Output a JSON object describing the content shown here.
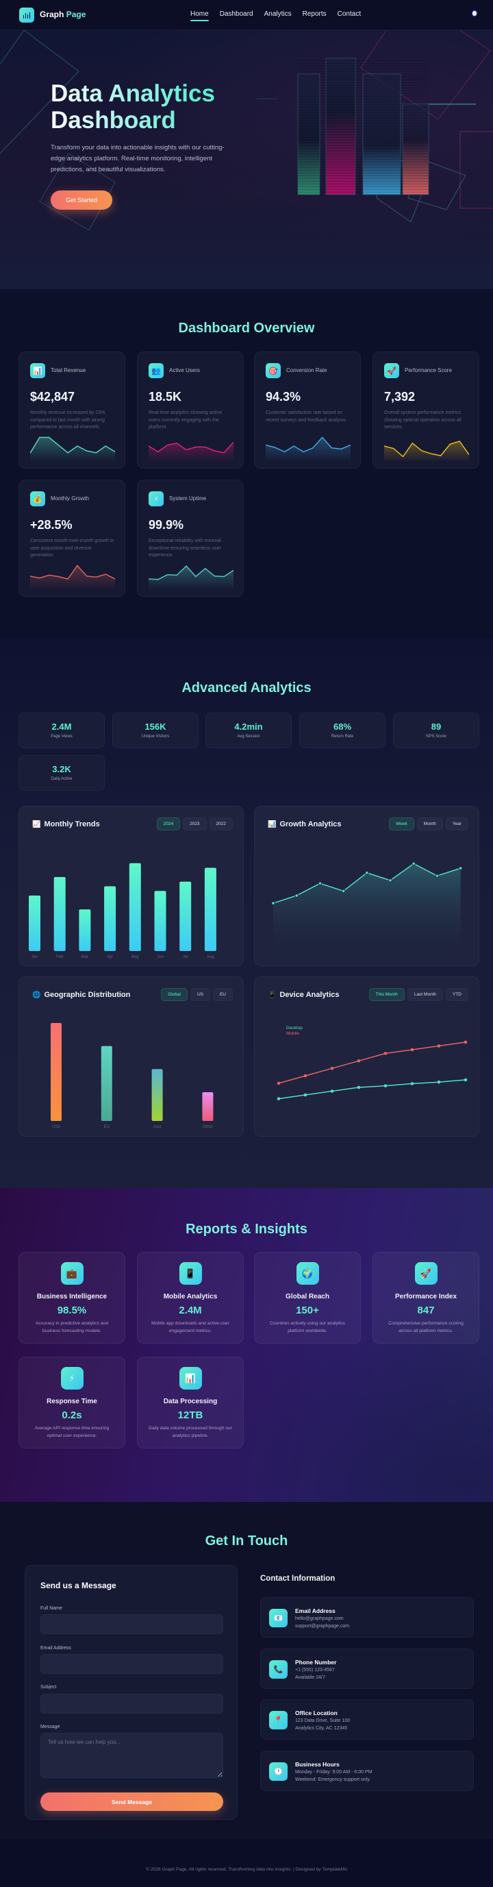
{
  "nav": {
    "brand_first": "Graph",
    "brand_second": "Page",
    "links": [
      {
        "label": "Home",
        "active": true
      },
      {
        "label": "Dashboard",
        "active": false
      },
      {
        "label": "Analytics",
        "active": false
      },
      {
        "label": "Reports",
        "active": false
      },
      {
        "label": "Contact",
        "active": false
      }
    ]
  },
  "hero": {
    "title_line1": "Data Analytics",
    "title_line2": "Dashboard",
    "description": "Transform your data into actionable insights with our cutting-edge analytics platform. Real-time monitoring, intelligent predictions, and beautiful visualizations.",
    "cta_label": "Get Started"
  },
  "overview": {
    "title": "Dashboard Overview",
    "cards": [
      {
        "icon": "bar-chart-icon",
        "glyph": "📊",
        "label": "Total Revenue",
        "value": "$42,847",
        "description": "Monthly revenue increased by 23% compared to last month with strong performance across all channels.",
        "color": "#4fd8bd",
        "spark": [
          45,
          12,
          12,
          28,
          44,
          30,
          40,
          44,
          30,
          42
        ]
      },
      {
        "icon": "users-icon",
        "glyph": "👥",
        "label": "Active Users",
        "value": "18.5K",
        "description": "Real-time analytics showing active users currently engaging with the platform.",
        "color": "#e0207c",
        "spark": [
          30,
          42,
          28,
          24,
          38,
          32,
          32,
          40,
          44,
          22
        ]
      },
      {
        "icon": "target-icon",
        "glyph": "🎯",
        "label": "Conversion Rate",
        "value": "94.3%",
        "description": "Customer satisfaction rate based on recent surveys and feedback analysis.",
        "color": "#3aa8e0",
        "spark": [
          28,
          33,
          42,
          30,
          42,
          34,
          12,
          34,
          36,
          28
        ]
      },
      {
        "icon": "rocket-icon",
        "glyph": "🚀",
        "label": "Performance Score",
        "value": "7,392",
        "description": "Overall system performance metrics showing optimal operation across all services.",
        "color": "#e8b81a",
        "spark": [
          30,
          35,
          52,
          24,
          40,
          46,
          50,
          26,
          20,
          48
        ]
      },
      {
        "icon": "money-bag-icon",
        "glyph": "💰",
        "label": "Monthly Growth",
        "value": "+28.5%",
        "description": "Consistent month-over-month growth in user acquisition and revenue generation.",
        "color": "#e06060",
        "spark": [
          34,
          38,
          32,
          35,
          40,
          12,
          34,
          36,
          30,
          40
        ]
      },
      {
        "icon": "lightning-icon",
        "glyph": "⚡",
        "label": "System Uptime",
        "value": "99.9%",
        "description": "Exceptional reliability with minimal downtime ensuring seamless user experience.",
        "color": "#4cc9c0",
        "spark": [
          40,
          41,
          31,
          32,
          13,
          35,
          18,
          34,
          35,
          22
        ]
      }
    ]
  },
  "advanced": {
    "title": "Advanced Analytics",
    "stats": [
      {
        "value": "2.4M",
        "label": "Page Views"
      },
      {
        "value": "156K",
        "label": "Unique Visitors"
      },
      {
        "value": "4.2min",
        "label": "Avg Session"
      },
      {
        "value": "68%",
        "label": "Return Rate"
      },
      {
        "value": "89",
        "label": "NPS Score"
      },
      {
        "value": "3.2K",
        "label": "Daily Active"
      }
    ],
    "charts": {
      "monthly": {
        "title": "Monthly Trends",
        "icon": "chart-up-icon",
        "glyph": "📈",
        "tabs": [
          "2024",
          "2023",
          "2022"
        ],
        "active": 0
      },
      "growth": {
        "title": "Growth Analytics",
        "icon": "bar-chart-icon",
        "glyph": "📊",
        "tabs": [
          "Week",
          "Month",
          "Year"
        ],
        "active": 0
      },
      "geo": {
        "title": "Geographic Distribution",
        "icon": "globe-icon",
        "glyph": "🌐",
        "tabs": [
          "Global",
          "US",
          "EU"
        ],
        "active": 0
      },
      "device": {
        "title": "Device Analytics",
        "icon": "mobile-icon",
        "glyph": "📱",
        "tabs": [
          "This Month",
          "Last Month",
          "YTD"
        ],
        "active": 0,
        "legend": [
          {
            "label": "Desktop",
            "color": "#4fe0c4"
          },
          {
            "label": "Mobile",
            "color": "#e96262"
          }
        ]
      }
    }
  },
  "chart_data": [
    {
      "type": "bar",
      "title": "Monthly Trends",
      "categories": [
        "Jan",
        "Feb",
        "Mar",
        "Apr",
        "May",
        "Jun",
        "Jul",
        "Aug"
      ],
      "values": [
        60,
        80,
        45,
        70,
        95,
        65,
        75,
        90
      ],
      "ylim": [
        0,
        100
      ],
      "color_top": "#5ef8c8",
      "color_bottom": "#3ccbf4"
    },
    {
      "type": "area",
      "title": "Growth Analytics",
      "x": [
        1,
        2,
        3,
        4,
        5,
        6,
        7,
        8,
        9
      ],
      "values": [
        40,
        45,
        53,
        48,
        60,
        55,
        66,
        58,
        63
      ],
      "ylim": [
        0,
        100
      ],
      "color": "#4fe0c4"
    },
    {
      "type": "bar",
      "title": "Geographic Distribution",
      "categories": [
        "USA",
        "EU",
        "Asia",
        "Other"
      ],
      "values": [
        85,
        65,
        45,
        25
      ],
      "ylim": [
        0,
        100
      ],
      "colors": [
        [
          "#f87171",
          "#fb923c"
        ],
        [
          "#5ed6c4",
          "#4aa892"
        ],
        [
          "#5ab8d0",
          "#a3d430"
        ],
        [
          "#e98ef0",
          "#f05a7a"
        ]
      ]
    },
    {
      "type": "line",
      "title": "Device Analytics",
      "x": [
        1,
        2,
        3,
        4,
        5,
        6,
        7,
        8
      ],
      "series": [
        {
          "name": "Desktop",
          "values": [
            30,
            35,
            40,
            45,
            47,
            50,
            52,
            55
          ],
          "color": "#4fe0c4"
        },
        {
          "name": "Mobile",
          "values": [
            50,
            60,
            70,
            80,
            90,
            95,
            100,
            105
          ],
          "color": "#e96262"
        }
      ],
      "ylim": [
        0,
        120
      ],
      "grid": true
    }
  ],
  "reports": {
    "title": "Reports & Insights",
    "cards": [
      {
        "icon": "briefcase-icon",
        "glyph": "💼",
        "title": "Business Intelligence",
        "value": "98.5%",
        "description": "Accuracy in predictive analytics and business forecasting models."
      },
      {
        "icon": "mobile-icon",
        "glyph": "📱",
        "title": "Mobile Analytics",
        "value": "2.4M",
        "description": "Mobile app downloads and active user engagement metrics."
      },
      {
        "icon": "globe-icon",
        "glyph": "🌍",
        "title": "Global Reach",
        "value": "150+",
        "description": "Countries actively using our analytics platform worldwide."
      },
      {
        "icon": "rocket-icon",
        "glyph": "🚀",
        "title": "Performance Index",
        "value": "847",
        "description": "Comprehensive performance scoring across all platform metrics."
      },
      {
        "icon": "lightning-icon",
        "glyph": "⚡",
        "title": "Response Time",
        "value": "0.2s",
        "description": "Average API response time ensuring optimal user experience."
      },
      {
        "icon": "bar-chart-icon",
        "glyph": "📊",
        "title": "Data Processing",
        "value": "12TB",
        "description": "Daily data volume processed through our analytics pipeline."
      }
    ]
  },
  "contact": {
    "title": "Get In Touch",
    "form": {
      "title": "Send us a Message",
      "name_label": "Full Name",
      "name_value": "",
      "email_label": "Email Address",
      "email_value": "",
      "subject_label": "Subject",
      "subject_value": "",
      "message_label": "Message",
      "message_placeholder": "Tell us how we can help you...",
      "submit_label": "Send Message"
    },
    "info_title": "Contact Information",
    "info": [
      {
        "icon": "email-icon",
        "glyph": "📧",
        "heading": "Email Address",
        "line1": "hello@graphpage.com",
        "line2": "support@graphpage.com"
      },
      {
        "icon": "phone-icon",
        "glyph": "📞",
        "heading": "Phone Number",
        "line1": "+1 (555) 123-4567",
        "line2": "Available 24/7"
      },
      {
        "icon": "location-pin-icon",
        "glyph": "📍",
        "heading": "Office Location",
        "line1": "123 Data Drive, Suite 100",
        "line2": "Analytics City, AC 12345"
      },
      {
        "icon": "clock-icon",
        "glyph": "🕐",
        "heading": "Business Hours",
        "line1": "Monday - Friday: 9:00 AM - 6:00 PM",
        "line2": "Weekend: Emergency support only"
      }
    ]
  },
  "footer": {
    "text": "© 2026 Graph Page. All rights reserved. Transforming data into insights. | Designed by TemplateMo"
  },
  "colors": {
    "accent": "#5ef0d0",
    "accent_blue": "#3cc6f0",
    "cta_start": "#f2716c",
    "cta_end": "#f69450",
    "bg": "#0c0f26"
  }
}
